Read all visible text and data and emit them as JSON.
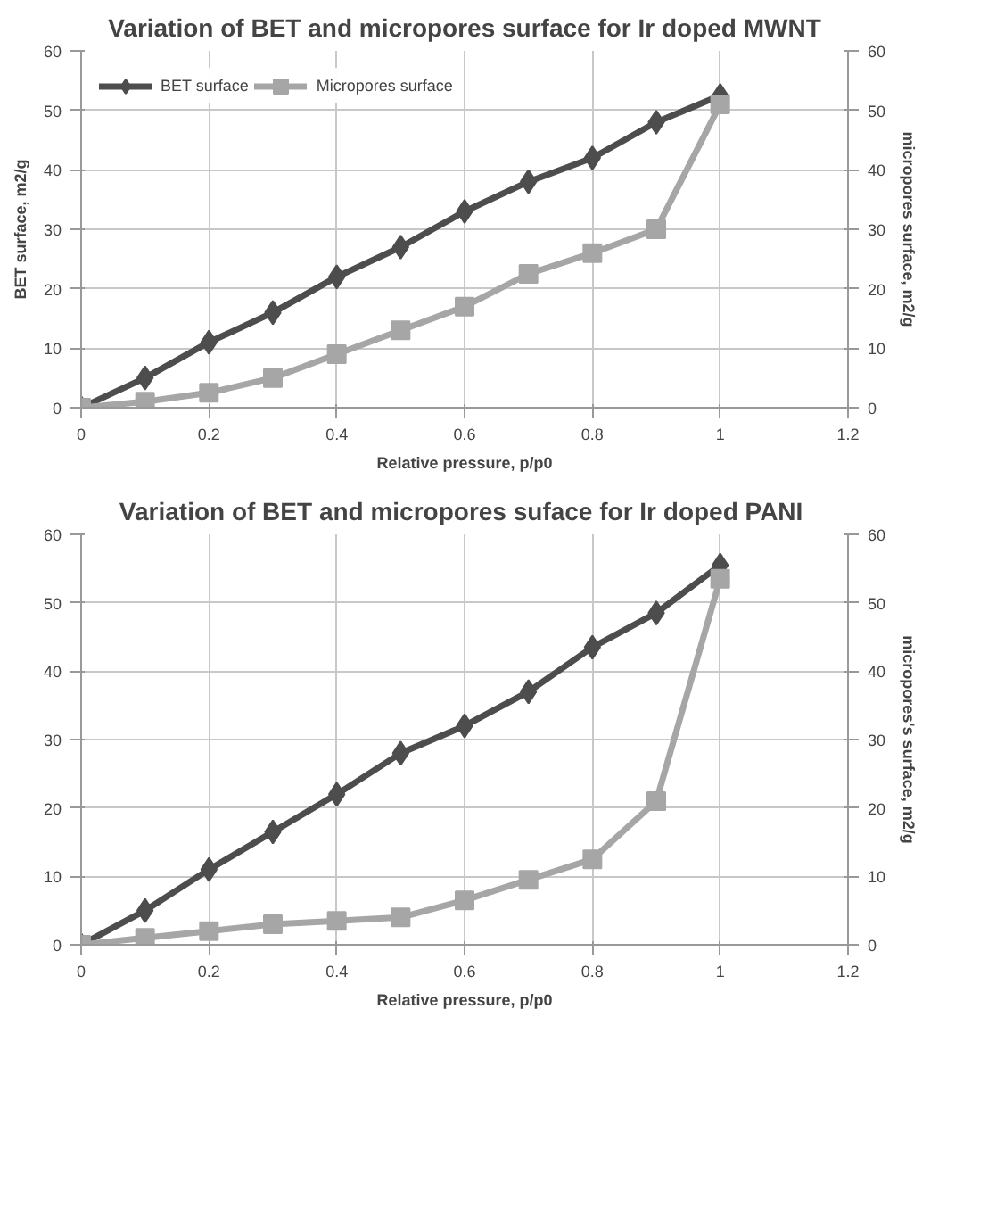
{
  "chart_data": [
    {
      "type": "line",
      "title": "Variation of BET and micropores surface for Ir doped MWNT",
      "xlabel": "Relative pressure, p/p0",
      "ylabel": "BET surface, m2/g",
      "y2label": "micropores surface, m2/g",
      "x": [
        0,
        0.1,
        0.2,
        0.3,
        0.4,
        0.5,
        0.6,
        0.7,
        0.8,
        0.9,
        1
      ],
      "xlim": [
        0,
        1.2
      ],
      "xticks": [
        0,
        0.2,
        0.4,
        0.6,
        0.8,
        1,
        1.2
      ],
      "ylim": [
        0,
        60
      ],
      "yticks": [
        0,
        10,
        20,
        30,
        40,
        50,
        60
      ],
      "y2lim": [
        0,
        60
      ],
      "y2ticks": [
        0,
        10,
        20,
        30,
        40,
        50,
        60
      ],
      "grid": true,
      "legend": "top left",
      "series": [
        {
          "name": "BET surface",
          "color": "#4d4d4d",
          "marker": "diamond",
          "values": [
            0,
            5,
            11,
            16,
            22,
            27,
            33,
            38,
            42,
            48,
            52.5
          ]
        },
        {
          "name": "Micropores surface",
          "color": "#a6a6a6",
          "marker": "square",
          "axis": "y2",
          "values": [
            0,
            1,
            2.5,
            5,
            9,
            13,
            17,
            22.5,
            26,
            30,
            51
          ]
        }
      ]
    },
    {
      "type": "line",
      "title": "Variation of BET and micropores suface  for Ir doped PANI",
      "xlabel": "Relative pressure, p/p0",
      "y2label": "micropores's surface, m2/g",
      "x": [
        0,
        0.1,
        0.2,
        0.3,
        0.4,
        0.5,
        0.6,
        0.7,
        0.8,
        0.9,
        1
      ],
      "xlim": [
        0,
        1.2
      ],
      "xticks": [
        0,
        0.2,
        0.4,
        0.6,
        0.8,
        1,
        1.2
      ],
      "ylim": [
        0,
        60
      ],
      "yticks": [
        0,
        10,
        20,
        30,
        40,
        50,
        60
      ],
      "y2lim": [
        0,
        60
      ],
      "y2ticks": [
        0,
        10,
        20,
        30,
        40,
        50,
        60
      ],
      "grid": true,
      "series": [
        {
          "color": "#4d4d4d",
          "marker": "diamond",
          "values": [
            0,
            5,
            11,
            16.5,
            22,
            28,
            32,
            37,
            43.5,
            48.5,
            55.5
          ]
        },
        {
          "color": "#a6a6a6",
          "marker": "square",
          "axis": "y2",
          "values": [
            0,
            1,
            2,
            3,
            3.5,
            4,
            6.5,
            9.5,
            12.5,
            21,
            53.5
          ]
        }
      ]
    }
  ]
}
